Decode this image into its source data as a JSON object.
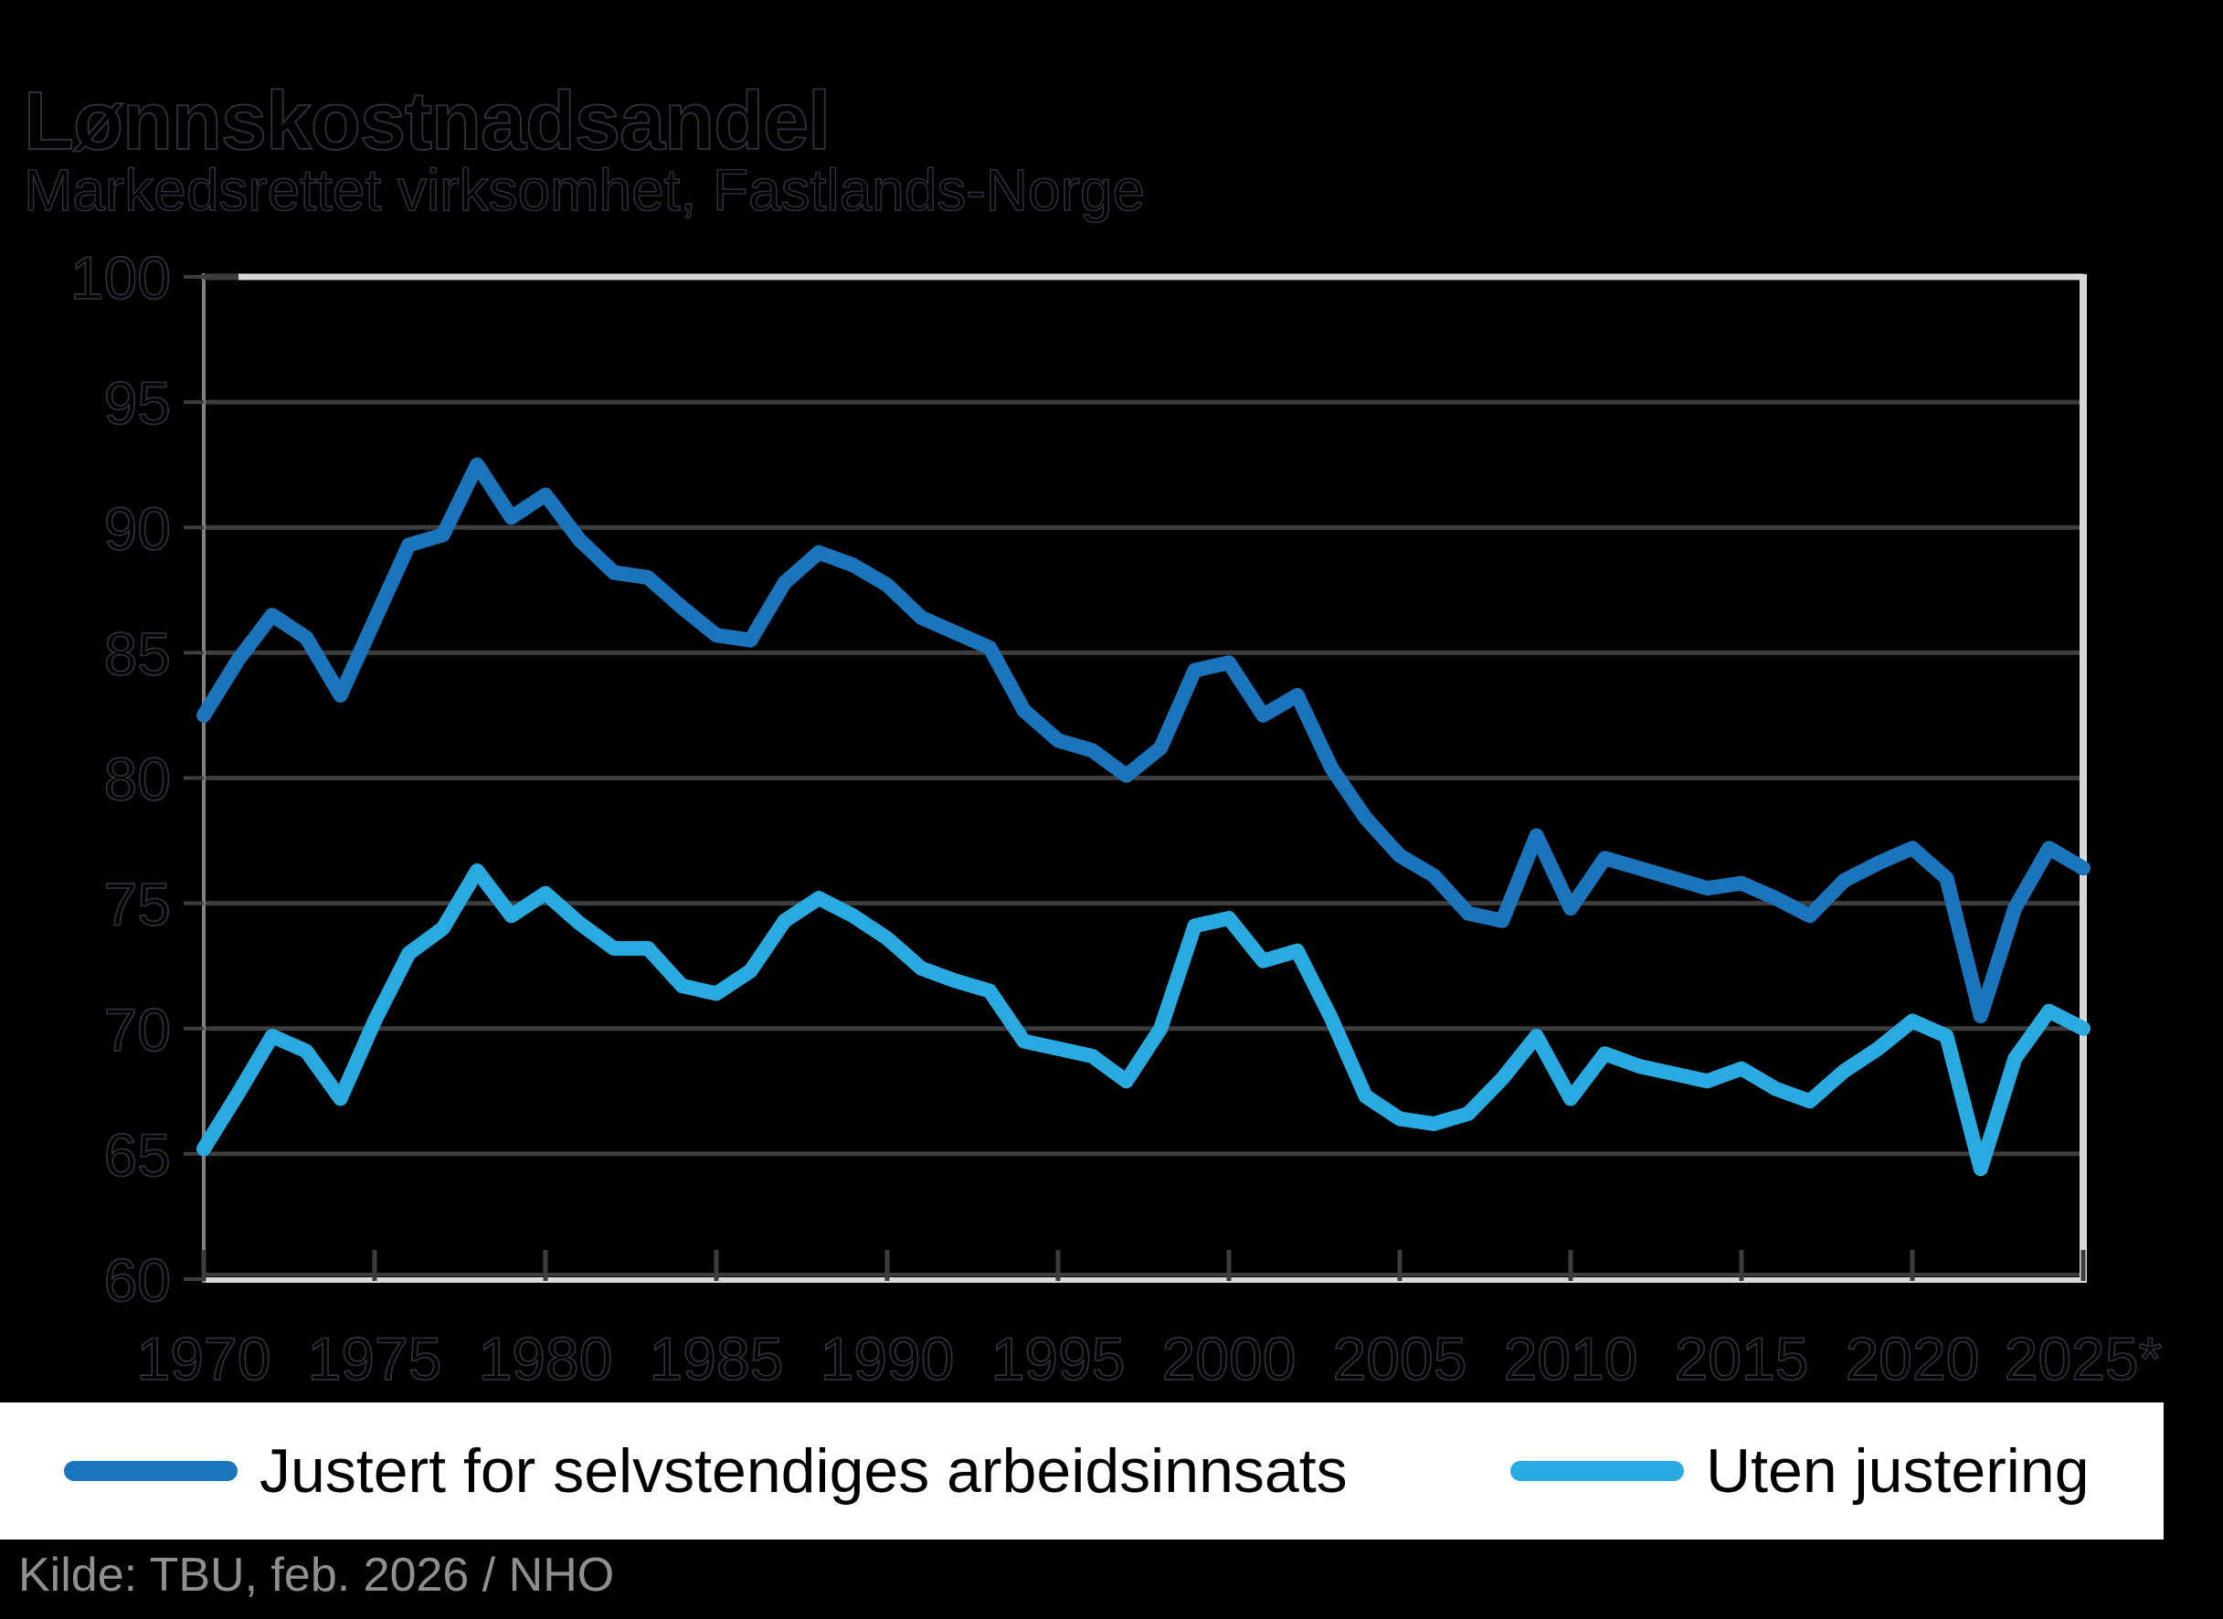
{
  "title": "Lønnskostnadsandel",
  "subtitle": "Markedsrettet virksomhet, Fastlands-Norge",
  "source": "Kilde: TBU, feb. 2026 / NHO",
  "colors": {
    "background": "#000000",
    "series_adjusted": "#1B75BC",
    "series_unadjusted": "#29ABE2",
    "grid": "#3d3d3d",
    "plot_border": "#d9d9d9",
    "left_spine": "#808080",
    "axis_text_fill": "#000000",
    "axis_text_outline": "#2e2e37",
    "legend_background": "#ffffff",
    "legend_text": "#000000",
    "source_text": "#8f8f8f"
  },
  "legend": [
    {
      "label": "Justert for selvstendiges arbeidsinnsats",
      "color": "#1B75BC"
    },
    {
      "label": "Uten justering",
      "color": "#29ABE2"
    }
  ],
  "chart_data": {
    "type": "line",
    "title": "Lønnskostnadsandel",
    "subtitle": "Markedsrettet virksomhet, Fastlands-Norge",
    "xlabel": "",
    "ylabel": "",
    "ylim": [
      60,
      100
    ],
    "yticks": [
      60,
      65,
      70,
      75,
      80,
      85,
      90,
      95,
      100
    ],
    "xticks": [
      1970,
      1975,
      1980,
      1985,
      1990,
      1995,
      2000,
      2005,
      2010,
      2015,
      2020,
      2025
    ],
    "xtick_labels": [
      "1970",
      "1975",
      "1980",
      "1985",
      "1990",
      "1995",
      "2000",
      "2005",
      "2010",
      "2015",
      "2020",
      "2025*"
    ],
    "grid": true,
    "legend_position": "bottom",
    "x": [
      1970,
      1971,
      1972,
      1973,
      1974,
      1975,
      1976,
      1977,
      1978,
      1979,
      1980,
      1981,
      1982,
      1983,
      1984,
      1985,
      1986,
      1987,
      1988,
      1989,
      1990,
      1991,
      1992,
      1993,
      1994,
      1995,
      1996,
      1997,
      1998,
      1999,
      2000,
      2001,
      2002,
      2003,
      2004,
      2005,
      2006,
      2007,
      2008,
      2009,
      2010,
      2011,
      2012,
      2013,
      2014,
      2015,
      2016,
      2017,
      2018,
      2019,
      2020,
      2021,
      2022,
      2023,
      2024,
      2025
    ],
    "series": [
      {
        "name": "Justert for selvstendiges arbeidsinnsats",
        "color": "#1B75BC",
        "values": [
          82.5,
          84.7,
          86.5,
          85.6,
          83.3,
          86.3,
          89.3,
          89.7,
          92.5,
          90.4,
          91.3,
          89.5,
          88.2,
          88.0,
          86.8,
          85.7,
          85.5,
          87.8,
          89.0,
          88.5,
          87.7,
          86.4,
          85.8,
          85.2,
          82.7,
          81.5,
          81.1,
          80.1,
          81.2,
          84.3,
          84.6,
          82.5,
          83.3,
          80.4,
          78.4,
          76.9,
          76.1,
          74.6,
          74.3,
          77.7,
          74.8,
          76.8,
          76.4,
          76.0,
          75.6,
          75.8,
          75.2,
          74.5,
          75.9,
          76.6,
          77.2,
          76.0,
          70.5,
          74.8,
          77.2,
          76.4
        ]
      },
      {
        "name": "Uten justering",
        "color": "#29ABE2",
        "values": [
          65.2,
          67.4,
          69.7,
          69.1,
          67.2,
          70.3,
          73.0,
          74.0,
          76.3,
          74.5,
          75.4,
          74.2,
          73.2,
          73.2,
          71.7,
          71.4,
          72.3,
          74.3,
          75.2,
          74.5,
          73.6,
          72.4,
          71.9,
          71.5,
          69.5,
          69.2,
          68.9,
          67.9,
          70.0,
          74.1,
          74.4,
          72.7,
          73.1,
          70.4,
          67.3,
          66.4,
          66.2,
          66.6,
          68.0,
          69.7,
          67.2,
          69.0,
          68.5,
          68.2,
          67.9,
          68.4,
          67.6,
          67.1,
          68.3,
          69.2,
          70.3,
          69.7,
          64.4,
          68.8,
          70.7,
          70.0
        ]
      }
    ]
  }
}
